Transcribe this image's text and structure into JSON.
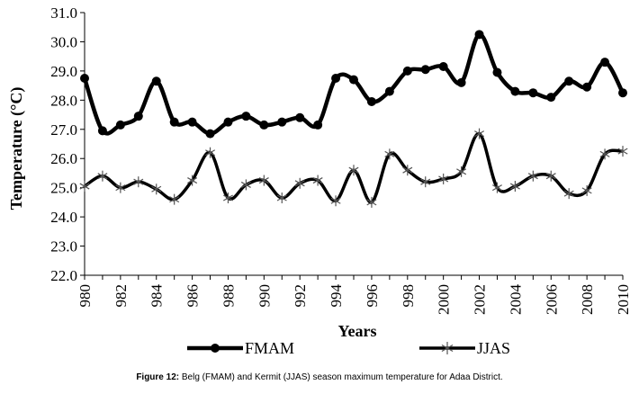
{
  "caption": {
    "label": "Figure 12:",
    "text": "Belg (FMAM) and Kermit (JJAS) season maximum temperature for Adaa District."
  },
  "chart_data": {
    "type": "line",
    "xlabel": "Years",
    "ylabel": "Temperature (°C)",
    "ylim": [
      22.0,
      31.0
    ],
    "yticks": [
      "22.0",
      "23.0",
      "24.0",
      "25.0",
      "26.0",
      "27.0",
      "28.0",
      "29.0",
      "30.0",
      "31.0"
    ],
    "xticks": [
      "980",
      "982",
      "984",
      "986",
      "988",
      "990",
      "992",
      "994",
      "996",
      "998",
      "2000",
      "2002",
      "2004",
      "2006",
      "2008",
      "2010"
    ],
    "x": [
      1980,
      1981,
      1982,
      1983,
      1984,
      1985,
      1986,
      1987,
      1988,
      1989,
      1990,
      1991,
      1992,
      1993,
      1994,
      1995,
      1996,
      1997,
      1998,
      1999,
      2000,
      2001,
      2002,
      2003,
      2004,
      2005,
      2006,
      2007,
      2008,
      2009,
      2010
    ],
    "legend_position": "bottom",
    "grid": false,
    "series": [
      {
        "name": "FMAM",
        "marker": "circle",
        "color": "#000000",
        "values": [
          28.75,
          26.95,
          27.15,
          27.45,
          28.65,
          27.25,
          27.25,
          26.85,
          27.25,
          27.45,
          27.15,
          27.25,
          27.4,
          27.15,
          28.75,
          28.7,
          27.95,
          28.3,
          29.0,
          29.05,
          29.15,
          28.6,
          30.25,
          28.95,
          28.3,
          28.25,
          28.1,
          28.65,
          28.45,
          29.3,
          28.25
        ]
      },
      {
        "name": "JJAS",
        "marker": "asterisk",
        "color": "#000000",
        "values": [
          25.05,
          25.4,
          25.0,
          25.2,
          24.95,
          24.6,
          25.25,
          26.2,
          24.65,
          25.1,
          25.25,
          24.65,
          25.15,
          25.25,
          24.55,
          25.6,
          24.5,
          26.15,
          25.6,
          25.2,
          25.3,
          25.55,
          26.85,
          25.0,
          25.05,
          25.4,
          25.4,
          24.8,
          24.9,
          26.15,
          26.25
        ]
      }
    ]
  }
}
